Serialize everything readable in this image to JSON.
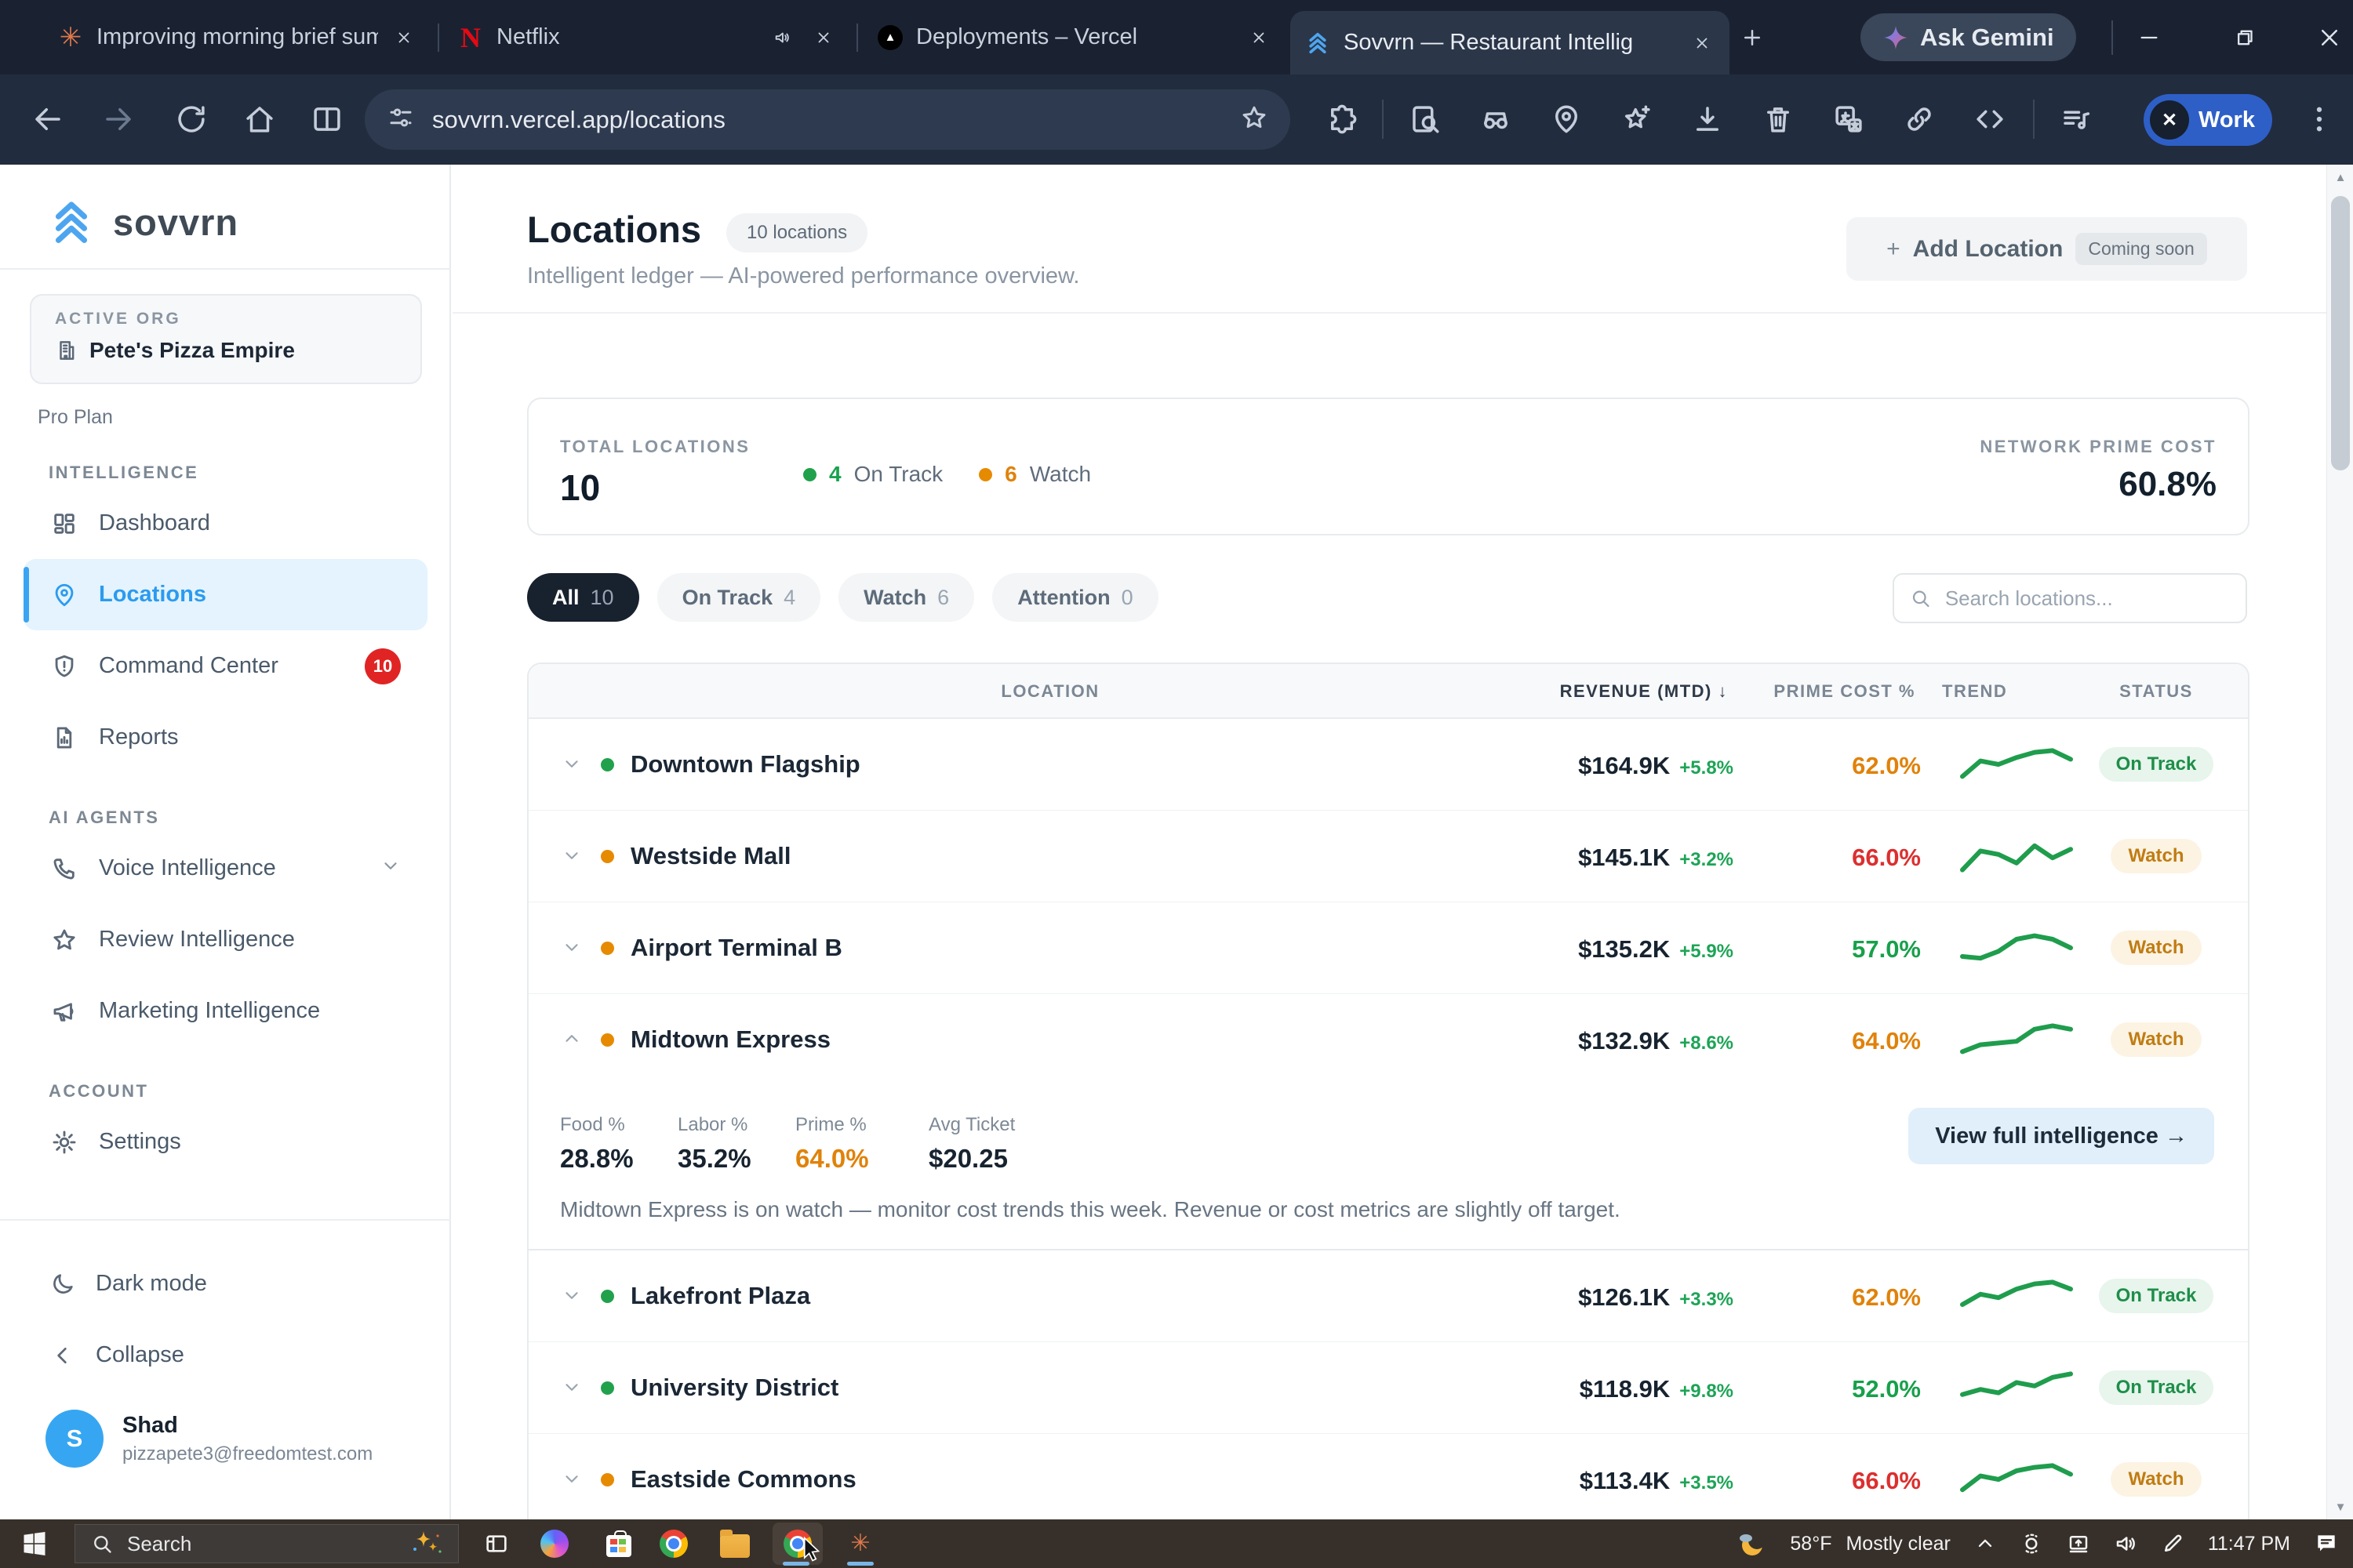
{
  "colors": {
    "brand_blue": "#2b9bef",
    "green": "#18a24e",
    "orange": "#e0820a",
    "red": "#dc2f2f",
    "dot_green": "#21a14c",
    "dot_orange": "#e68a00",
    "spark_green": "#1f9d4d",
    "badge_red": "#e02424",
    "work_profile_blue": "#2e5fc7"
  },
  "browser": {
    "tabs": [
      {
        "title": "Improving morning brief sum",
        "icon": "claude-starburst",
        "audio": false,
        "active": false
      },
      {
        "title": "Netflix",
        "icon": "netflix",
        "audio": true,
        "active": false
      },
      {
        "title": "Deployments – Vercel",
        "icon": "vercel",
        "audio": false,
        "active": false
      },
      {
        "title": "Sovvrn — Restaurant Intellig",
        "icon": "sovvrn",
        "audio": false,
        "active": true
      }
    ],
    "ask_gemini_label": "Ask Gemini",
    "url": "sovvrn.vercel.app/locations",
    "profile_label": "Work"
  },
  "sidebar": {
    "logo_text": "sovvrn",
    "org_card": {
      "label": "ACTIVE ORG",
      "name": "Pete's Pizza Empire"
    },
    "plan": "Pro Plan",
    "sections": [
      {
        "label": "INTELLIGENCE",
        "items": [
          {
            "label": "Dashboard",
            "icon": "dashboard-grid-icon"
          },
          {
            "label": "Locations",
            "icon": "map-pin-icon",
            "active": true
          },
          {
            "label": "Command Center",
            "icon": "shield-alert-icon",
            "badge": "10"
          },
          {
            "label": "Reports",
            "icon": "report-doc-icon"
          }
        ]
      },
      {
        "label": "AI AGENTS",
        "items": [
          {
            "label": "Voice Intelligence",
            "icon": "phone-icon",
            "chevron": true
          },
          {
            "label": "Review Intelligence",
            "icon": "star-icon"
          },
          {
            "label": "Marketing Intelligence",
            "icon": "megaphone-icon"
          }
        ]
      },
      {
        "label": "ACCOUNT",
        "items": [
          {
            "label": "Settings",
            "icon": "gear-icon"
          }
        ]
      }
    ],
    "footer": {
      "dark_mode_label": "Dark mode",
      "collapse_label": "Collapse",
      "user_name": "Shad",
      "user_email": "pizzapete3@freedomtest.com",
      "avatar_initial": "S"
    }
  },
  "page": {
    "title": "Locations",
    "count_chip": "10 locations",
    "subtitle": "Intelligent ledger — AI-powered performance overview.",
    "add_button": {
      "label": "Add Location",
      "plus": "+",
      "badge": "Coming soon"
    },
    "summary": {
      "total_label": "TOTAL LOCATIONS",
      "total_value": "10",
      "on_track_count": "4",
      "on_track_label": "On Track",
      "watch_count": "6",
      "watch_label": "Watch",
      "network_label": "NETWORK PRIME COST",
      "network_value": "60.8%"
    },
    "filters": [
      {
        "label": "All",
        "count": "10",
        "active": true
      },
      {
        "label": "On Track",
        "count": "4",
        "active": false
      },
      {
        "label": "Watch",
        "count": "6",
        "active": false
      },
      {
        "label": "Attention",
        "count": "0",
        "active": false
      }
    ],
    "search_placeholder": "Search locations...",
    "table": {
      "columns": [
        "LOCATION",
        "REVENUE (MTD) ↓",
        "PRIME COST %",
        "TREND",
        "STATUS"
      ],
      "sorted_column": 1,
      "rows": [
        {
          "name": "Downtown Flagship",
          "dot": "green",
          "revenue": "$164.9K",
          "delta": "+5.8%",
          "prime": "62.0%",
          "prime_class": "orange",
          "status": "on",
          "status_label": "On Track",
          "expanded": false,
          "trend": [
            34,
            16,
            20,
            12,
            6,
            4,
            14
          ]
        },
        {
          "name": "Westside Mall",
          "dot": "orange",
          "revenue": "$145.1K",
          "delta": "+3.2%",
          "prime": "66.0%",
          "prime_class": "red",
          "status": "watch",
          "status_label": "Watch",
          "expanded": false,
          "trend": [
            36,
            14,
            18,
            28,
            8,
            22,
            12
          ]
        },
        {
          "name": "Airport Terminal B",
          "dot": "orange",
          "revenue": "$135.2K",
          "delta": "+5.9%",
          "prime": "57.0%",
          "prime_class": "green",
          "status": "watch",
          "status_label": "Watch",
          "expanded": false,
          "trend": [
            30,
            32,
            24,
            10,
            6,
            10,
            20
          ]
        },
        {
          "name": "Midtown Express",
          "dot": "orange",
          "revenue": "$132.9K",
          "delta": "+8.6%",
          "prime": "64.0%",
          "prime_class": "orange",
          "status": "watch",
          "status_label": "Watch",
          "expanded": true,
          "trend": [
            34,
            26,
            24,
            22,
            8,
            4,
            8
          ]
        },
        {
          "name": "Lakefront Plaza",
          "dot": "green",
          "revenue": "$126.1K",
          "delta": "+3.3%",
          "prime": "62.0%",
          "prime_class": "orange",
          "status": "on",
          "status_label": "On Track",
          "expanded": false,
          "trend": [
            30,
            18,
            22,
            12,
            6,
            4,
            12
          ]
        },
        {
          "name": "University District",
          "dot": "green",
          "revenue": "$118.9K",
          "delta": "+9.8%",
          "prime": "52.0%",
          "prime_class": "green",
          "status": "on",
          "status_label": "On Track",
          "expanded": false,
          "trend": [
            28,
            22,
            26,
            14,
            18,
            8,
            4
          ]
        },
        {
          "name": "Eastside Commons",
          "dot": "orange",
          "revenue": "$113.4K",
          "delta": "+3.5%",
          "prime": "66.0%",
          "prime_class": "red",
          "status": "watch",
          "status_label": "Watch",
          "expanded": false,
          "trend": [
            32,
            16,
            20,
            10,
            6,
            4,
            14
          ]
        }
      ]
    },
    "detail": {
      "metrics": [
        {
          "label": "Food %",
          "value": "28.8%",
          "class": ""
        },
        {
          "label": "Labor %",
          "value": "35.2%",
          "class": ""
        },
        {
          "label": "Prime %",
          "value": "64.0%",
          "class": "orange"
        },
        {
          "label": "Avg Ticket",
          "value": "$20.25",
          "class": ""
        }
      ],
      "button_label": "View full intelligence →",
      "insight": "Midtown Express is on watch — monitor cost trends this week. Revenue or cost metrics are slightly off target."
    }
  },
  "taskbar": {
    "search_label": "Search",
    "weather_temp": "58°F",
    "weather_condition": "Mostly clear",
    "time": "11:47 PM"
  }
}
